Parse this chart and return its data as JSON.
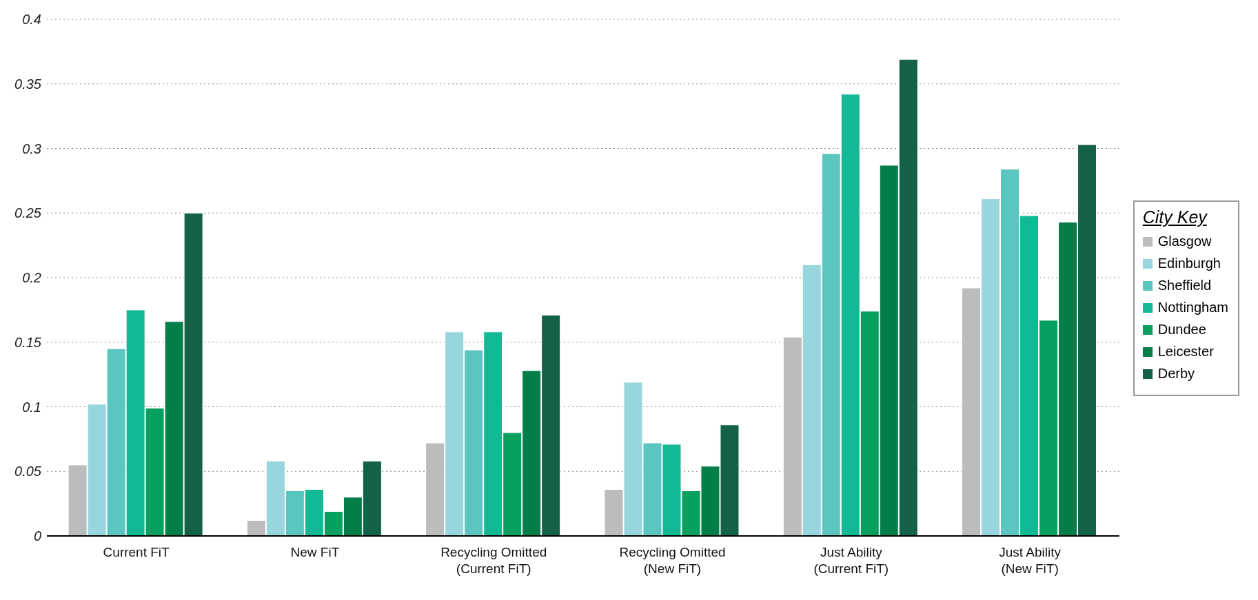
{
  "chart_data": {
    "type": "bar",
    "categories": [
      "Current FiT",
      "New FiT",
      "Recycling Omitted\n(Current FiT)",
      "Recycling Omitted\n(New FiT)",
      "Just Ability\n(Current FiT)",
      "Just Ability\n(New FiT)"
    ],
    "series": [
      {
        "name": "Glasgow",
        "color": "#bbbcbe",
        "values": [
          0.055,
          0.012,
          0.072,
          0.036,
          0.154,
          0.192
        ]
      },
      {
        "name": "Edinburgh",
        "color": "#96d6dc",
        "values": [
          0.102,
          0.058,
          0.158,
          0.119,
          0.21,
          0.261
        ]
      },
      {
        "name": "Sheffield",
        "color": "#5bc5bf",
        "values": [
          0.145,
          0.035,
          0.144,
          0.072,
          0.296,
          0.284
        ]
      },
      {
        "name": "Nottingham",
        "color": "#13b895",
        "values": [
          0.175,
          0.036,
          0.158,
          0.071,
          0.342,
          0.248
        ]
      },
      {
        "name": "Dundee",
        "color": "#05a05e",
        "values": [
          0.099,
          0.019,
          0.08,
          0.035,
          0.174,
          0.167
        ]
      },
      {
        "name": "Leicester",
        "color": "#037e48",
        "values": [
          0.166,
          0.03,
          0.128,
          0.054,
          0.287,
          0.243
        ]
      },
      {
        "name": "Derby",
        "color": "#126148",
        "values": [
          0.25,
          0.058,
          0.171,
          0.086,
          0.369,
          0.303
        ]
      }
    ],
    "ylim": [
      0,
      0.4
    ],
    "yticks": [
      0,
      0.05,
      0.1,
      0.15,
      0.2,
      0.25,
      0.3,
      0.35,
      0.4
    ],
    "grid": "y",
    "legend": "right",
    "legend_title": "City Key"
  }
}
